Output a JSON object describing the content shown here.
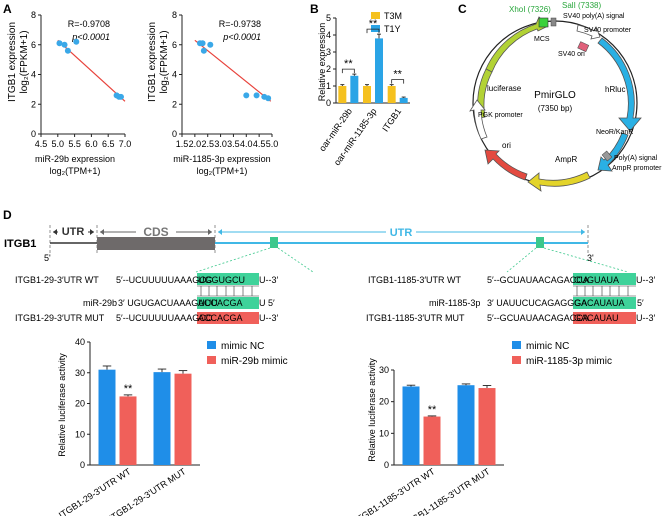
{
  "panels": {
    "A": "A",
    "B": "B",
    "C": "C",
    "D": "D"
  },
  "scatter": {
    "left": {
      "ylabel1": "ITGB1 expression",
      "ylabel2": "log₂(FPKM+1)",
      "xlabel1": "miR-29b expression",
      "xlabel2": "log₂(TPM+1)",
      "r": "R=-0.9708",
      "p": "p<0.0001",
      "yticks": [
        "0",
        "2",
        "4",
        "6",
        "8"
      ],
      "xticks": [
        "4.5",
        "5.0",
        "5.5",
        "6.0",
        "6.5",
        "7.0"
      ]
    },
    "right": {
      "ylabel1": "ITGB1 expression",
      "ylabel2": "log₂(FPKM+1)",
      "xlabel1": "miR-1185-3p expression",
      "xlabel2": "log₂(TPM+1)",
      "r": "R=-0.9738",
      "p": "p<0.0001",
      "yticks": [
        "0",
        "2",
        "4",
        "6",
        "8"
      ],
      "xticks": [
        "1.5",
        "2.0",
        "2.5",
        "3.0",
        "3.5",
        "4.0",
        "4.5",
        "5.0"
      ]
    }
  },
  "chart_data": [
    {
      "type": "scatter",
      "title": "",
      "xlabel": "miR-29b expression log2(TPM+1)",
      "ylabel": "ITGB1 expression log2(FPKM+1)",
      "xlim": [
        4.5,
        7.0
      ],
      "ylim": [
        0,
        8
      ],
      "x": [
        5.05,
        5.2,
        5.3,
        5.55,
        6.75,
        6.82,
        6.88
      ],
      "y": [
        6.1,
        6.0,
        5.6,
        6.2,
        2.6,
        2.5,
        2.5
      ],
      "fit": {
        "x0": 5.0,
        "y0": 6.3,
        "x1": 7.0,
        "y1": 2.2
      }
    },
    {
      "type": "scatter",
      "title": "",
      "xlabel": "miR-1185-3p expression log2(TPM+1)",
      "ylabel": "ITGB1 expression log2(FPKM+1)",
      "xlim": [
        1.5,
        5.0
      ],
      "ylim": [
        0,
        8
      ],
      "x": [
        2.2,
        2.3,
        2.35,
        2.6,
        4.0,
        4.4,
        4.7,
        4.85
      ],
      "y": [
        6.1,
        6.1,
        5.6,
        6.0,
        2.6,
        2.6,
        2.5,
        2.4
      ],
      "fit": {
        "x0": 2.0,
        "y0": 6.3,
        "x1": 4.95,
        "y1": 2.2
      }
    },
    {
      "type": "bar",
      "title": "",
      "ylabel": "Relative expression",
      "categories": [
        "oar-miR-29b",
        "oar-miR-1185-3p",
        "ITGB1"
      ],
      "series": [
        {
          "name": "T3M",
          "values": [
            1.0,
            1.0,
            1.0
          ],
          "errors": [
            0.08,
            0.08,
            0.08
          ]
        },
        {
          "name": "T1Y",
          "values": [
            1.6,
            3.8,
            0.3
          ],
          "errors": [
            0.1,
            0.25,
            0.05
          ]
        }
      ],
      "ylim": [
        0,
        5
      ],
      "yticks": [
        0,
        1,
        2,
        3,
        4,
        5
      ]
    },
    {
      "type": "bar",
      "title": "",
      "ylabel": "Relative luciferase activity",
      "categories": [
        "ITGB1-29-3'UTR WT",
        "ITGB1-29-3'UTR MUT"
      ],
      "series": [
        {
          "name": "mimic NC",
          "values": [
            31.0,
            30.2
          ],
          "errors": [
            1.2,
            1.0
          ]
        },
        {
          "name": "miR-29b mimic",
          "values": [
            22.3,
            29.7
          ],
          "errors": [
            0.5,
            1.0
          ]
        }
      ],
      "ylim": [
        0,
        40
      ],
      "yticks": [
        0,
        10,
        20,
        30,
        40
      ]
    },
    {
      "type": "bar",
      "title": "",
      "ylabel": "Relative luciferase activity",
      "categories": [
        "ITGB1-1185-3'UTR WT",
        "ITGB1-1185-3'UTR MUT"
      ],
      "series": [
        {
          "name": "mimic NC",
          "values": [
            24.8,
            25.2
          ],
          "errors": [
            0.4,
            0.4
          ]
        },
        {
          "name": "miR-1185-3p mimic",
          "values": [
            15.3,
            24.3
          ],
          "errors": [
            0.2,
            0.8
          ]
        }
      ],
      "ylim": [
        0,
        30
      ],
      "yticks": [
        0,
        10,
        20,
        30
      ]
    }
  ],
  "barB": {
    "legend": [
      "T3M",
      "T1Y"
    ],
    "ylabel": "Relative expression",
    "categories": [
      "oar-miR-29b",
      "oar-miR-1185-3p",
      "ITGB1"
    ],
    "sig": [
      "**",
      "**",
      "**"
    ],
    "yticks": [
      "0",
      "1",
      "2",
      "3",
      "4",
      "5"
    ]
  },
  "colors": {
    "yellow": "#f5c11f",
    "blue": "#2aa4e6",
    "red": "#f0605a",
    "lucBlue": "#1f8ee8",
    "gray": "#6e6a6a",
    "utr": "#40b8e6",
    "green": "#3cc88c",
    "fit": "#e8423b",
    "dot": "#3aa8e8"
  },
  "plasmid": {
    "name": "PmirGLO",
    "size": "(7350 bp)",
    "labels": {
      "xhoi": "XhoI (7326)",
      "sali": "SalI (7338)",
      "mcs": "MCS",
      "sv40polya": "SV40 poly(A) signal",
      "sv40promoter": "SV40 promoter",
      "sv40ori": "SV40 ori",
      "hrluc": "hRluc",
      "neor": "NeoR/KanR",
      "polya": "Poly(A) signal",
      "ampr_promoter": "AmpR promoter",
      "ampr": "AmpR",
      "ori": "ori",
      "pgk": "PGK promoter",
      "luciferase": "luciferase"
    }
  },
  "gene": {
    "utr5": "UTR",
    "cds": "CDS",
    "utr3": "UTR",
    "name": "ITGB1",
    "end5": "5'",
    "end3": "3'"
  },
  "seq29": {
    "wt_label": "ITGB1-29-3′UTR WT",
    "wt_pre": "5′--UCUUUUUAAAGCC",
    "wt_site": "UGGUGCU",
    "wt_post": "U--3′",
    "mir_label": "miR-29b",
    "mir_pre": "3′ UGUGACUAAAGUUU",
    "mir_site": "ACCACGA",
    "mir_post": "U  5′",
    "mut_label": "ITGB1-29-3′UTR MUT",
    "mut_pre": "5′--UCUUUUUAAAGCC",
    "mut_site": "ACCACGA",
    "mut_post": "U--3′"
  },
  "seq1185": {
    "wt_label": "ITGB1-1185-3′UTR WT",
    "wt_pre": "5′--GCUAUAACAGACCA",
    "wt_site": "CUGUAUA",
    "wt_post": "U--3′",
    "mir_label": "miR-1185-3p",
    "mir_pre": "3′ UAUUCUCAGAGGGA",
    "mir_site": "GACAUAUA",
    "mir_post": "  5′",
    "mut_label": "ITGB1-1185-3′UTR MUT",
    "mut_pre": "5′--GCUAUAACAGACCA",
    "mut_site": "GACAUAU",
    "mut_post": "U--3′"
  },
  "luc29": {
    "legend": [
      "mimic NC",
      "miR-29b mimic"
    ],
    "ylabel": "Relative luciferase activity",
    "categories": [
      "ITGB1-29-3'UTR WT",
      "ITGB1-29-3'UTR MUT"
    ],
    "sig": "**",
    "yticks": [
      "0",
      "10",
      "20",
      "30",
      "40"
    ]
  },
  "luc1185": {
    "legend": [
      "mimic NC",
      "miR-1185-3p mimic"
    ],
    "ylabel": "Relative luciferase activity",
    "categories": [
      "ITGB1-1185-3'UTR WT",
      "ITGB1-1185-3'UTR MUT"
    ],
    "sig": "**",
    "yticks": [
      "0",
      "10",
      "20",
      "30"
    ]
  }
}
